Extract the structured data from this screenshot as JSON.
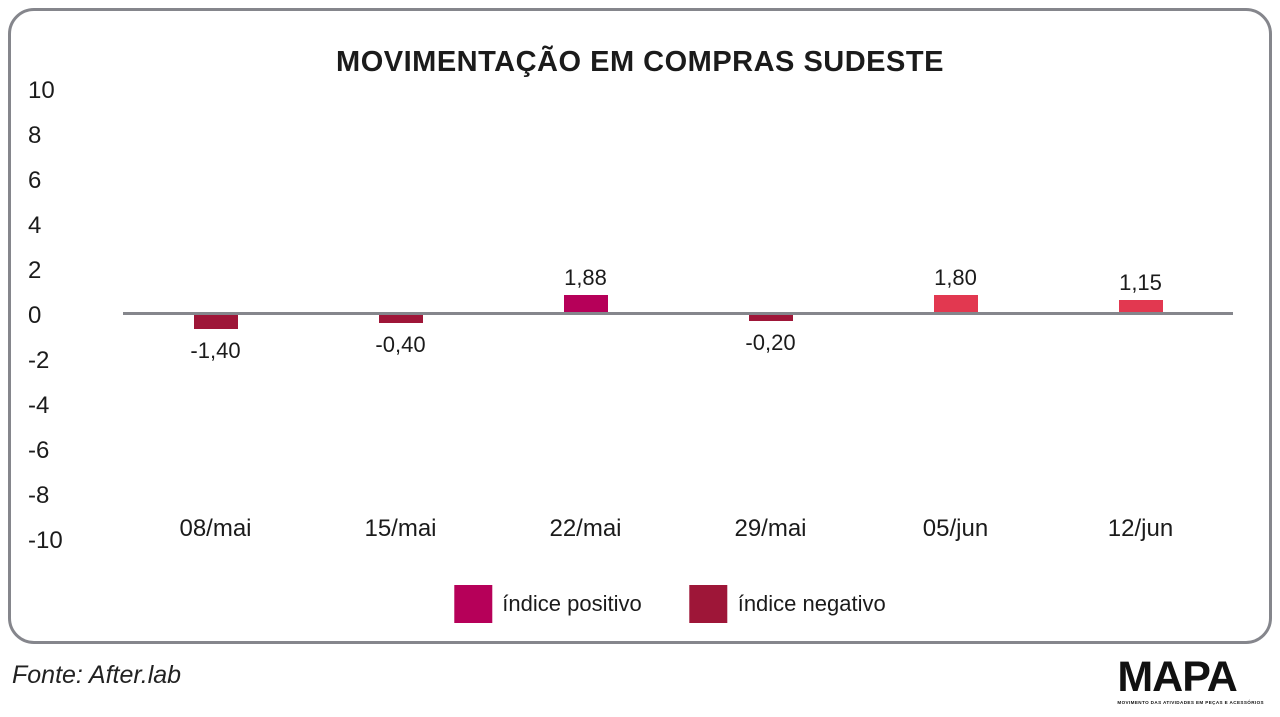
{
  "title": "MOVIMENTAÇÃO EM COMPRAS SUDESTE",
  "chart_data": {
    "type": "bar",
    "categories": [
      "08/mai",
      "15/mai",
      "22/mai",
      "29/mai",
      "05/jun",
      "12/jun"
    ],
    "values": [
      -1.4,
      -0.4,
      1.88,
      -0.2,
      1.8,
      1.15
    ],
    "value_labels": [
      "-1,40",
      "-0,40",
      "1,88",
      "-0,20",
      "1,80",
      "1,15"
    ],
    "bar_colors": [
      "#9e1638",
      "#9e1638",
      "#b60059",
      "#9e1638",
      "#e23850",
      "#e23850"
    ],
    "y_ticks": [
      10,
      8,
      6,
      4,
      2,
      0,
      -2,
      -4,
      -6,
      -8,
      -10
    ],
    "ylim": [
      -10,
      10
    ],
    "xlabel": "",
    "ylabel": "",
    "grid": "off",
    "legend_position": "bottom",
    "legend": [
      {
        "label": "índice positivo",
        "color": "#b60059"
      },
      {
        "label": "índice negativo",
        "color": "#9e1638"
      }
    ]
  },
  "footer": {
    "source": "Fonte: After.lab",
    "logo_text": "MAPA",
    "logo_tagline": "MOVIMENTO DAS ATIVIDADES EM PEÇAS E ACESSÓRIOS"
  },
  "colors": {
    "positive": "#b60059",
    "positive_alt": "#e23850",
    "negative": "#9e1638",
    "axis_line": "#85868c",
    "frame_border": "#85868c",
    "text": "#1b1b1b"
  }
}
